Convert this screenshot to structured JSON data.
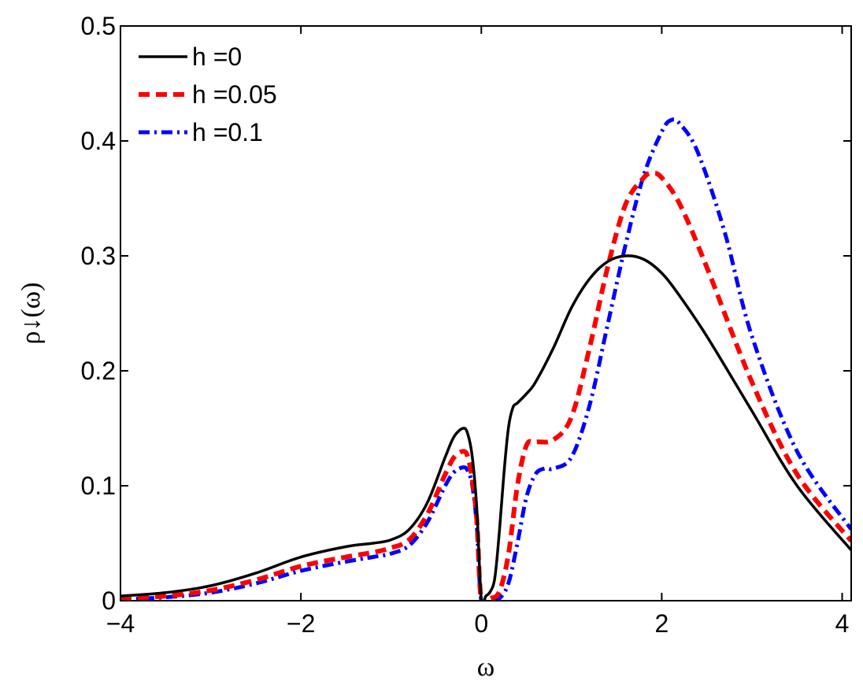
{
  "chart_data": {
    "type": "line",
    "xlabel": "ω",
    "ylabel": "ρ↓(ω)",
    "xlim": [
      -4,
      4.1
    ],
    "ylim": [
      0,
      0.5
    ],
    "xticks": [
      -4,
      -2,
      0,
      2,
      4
    ],
    "xtick_labels": [
      "−4",
      "−2",
      "0",
      "2",
      "4"
    ],
    "yticks": [
      0,
      0.1,
      0.2,
      0.3,
      0.4,
      0.5
    ],
    "ytick_labels": [
      "0",
      "0.1",
      "0.2",
      "0.3",
      "0.4",
      "0.5"
    ],
    "grid": false,
    "legend_position": "top-left",
    "series": [
      {
        "name": "h =0",
        "color": "#000000",
        "style": "solid",
        "x": [
          -4,
          -3.5,
          -3,
          -2.5,
          -2,
          -1.5,
          -1.2,
          -1,
          -0.8,
          -0.6,
          -0.4,
          -0.3,
          -0.2,
          -0.15,
          -0.1,
          -0.05,
          0,
          0.05,
          0.1,
          0.15,
          0.2,
          0.25,
          0.3,
          0.35,
          0.4,
          0.5,
          0.6,
          0.8,
          1,
          1.2,
          1.4,
          1.6,
          1.8,
          2,
          2.2,
          2.5,
          3,
          3.5,
          4.1
        ],
        "y": [
          0.004,
          0.007,
          0.013,
          0.024,
          0.038,
          0.047,
          0.05,
          0.053,
          0.062,
          0.085,
          0.125,
          0.143,
          0.15,
          0.145,
          0.125,
          0.08,
          0.0,
          0.004,
          0.008,
          0.02,
          0.06,
          0.11,
          0.15,
          0.168,
          0.172,
          0.18,
          0.19,
          0.22,
          0.255,
          0.28,
          0.295,
          0.3,
          0.297,
          0.285,
          0.265,
          0.23,
          0.165,
          0.1,
          0.044
        ]
      },
      {
        "name": "h =0.05",
        "color": "#ff0000",
        "style": "dashed",
        "x": [
          -4,
          -3.5,
          -3,
          -2.5,
          -2,
          -1.5,
          -1.2,
          -1,
          -0.8,
          -0.6,
          -0.4,
          -0.3,
          -0.2,
          -0.15,
          -0.1,
          -0.05,
          0,
          0.1,
          0.2,
          0.3,
          0.4,
          0.5,
          0.6,
          0.8,
          1,
          1.2,
          1.4,
          1.6,
          1.8,
          1.9,
          2,
          2.2,
          2.5,
          3,
          3.5,
          4.1
        ],
        "y": [
          0.002,
          0.004,
          0.009,
          0.018,
          0.03,
          0.038,
          0.042,
          0.046,
          0.053,
          0.075,
          0.11,
          0.125,
          0.13,
          0.125,
          0.105,
          0.07,
          0.0,
          0.002,
          0.008,
          0.04,
          0.1,
          0.135,
          0.138,
          0.14,
          0.16,
          0.22,
          0.29,
          0.345,
          0.368,
          0.372,
          0.368,
          0.345,
          0.29,
          0.19,
          0.11,
          0.052
        ]
      },
      {
        "name": "h =0.1",
        "color": "#0000ff",
        "style": "dashdot",
        "x": [
          -4,
          -3.5,
          -3,
          -2.5,
          -2,
          -1.5,
          -1.2,
          -1,
          -0.8,
          -0.6,
          -0.4,
          -0.3,
          -0.2,
          -0.15,
          -0.1,
          -0.05,
          0,
          0.1,
          0.2,
          0.3,
          0.4,
          0.5,
          0.6,
          0.7,
          0.8,
          1,
          1.2,
          1.4,
          1.6,
          1.8,
          2,
          2.1,
          2.2,
          2.4,
          2.7,
          3,
          3.5,
          4.1
        ],
        "y": [
          0.001,
          0.003,
          0.007,
          0.015,
          0.026,
          0.034,
          0.038,
          0.041,
          0.048,
          0.068,
          0.1,
          0.112,
          0.116,
          0.113,
          0.1,
          0.065,
          0.0,
          0.0,
          0.002,
          0.015,
          0.05,
          0.09,
          0.11,
          0.115,
          0.115,
          0.125,
          0.17,
          0.24,
          0.31,
          0.37,
          0.408,
          0.418,
          0.415,
          0.39,
          0.32,
          0.23,
          0.13,
          0.062
        ]
      }
    ]
  }
}
